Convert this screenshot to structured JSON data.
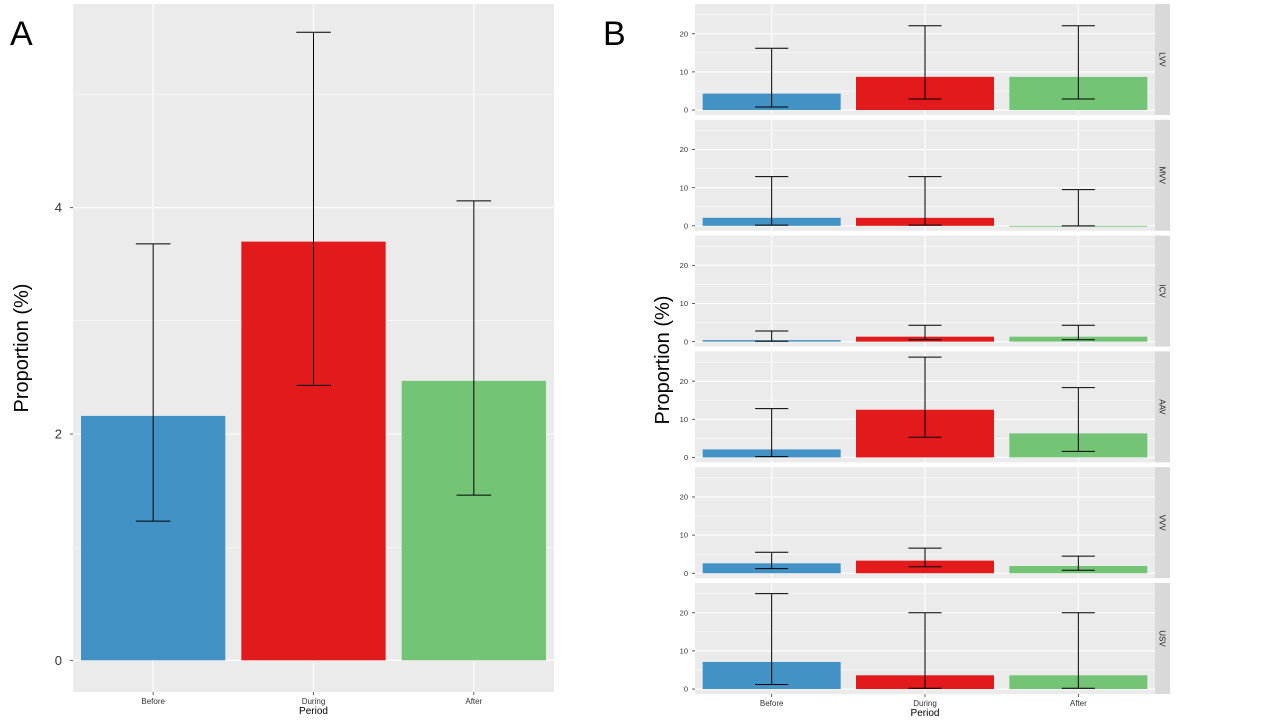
{
  "panel_letters": {
    "a": "A",
    "b": "B"
  },
  "colors": {
    "Before": "#4292C6",
    "During": "#E31A1C",
    "After": "#74C476",
    "panel_bg": "#EBEBEB",
    "grid": "#FFFFFF",
    "strip_bg": "#D9D9D9"
  },
  "chart_data": [
    {
      "type": "bar",
      "panel": "A",
      "title": "",
      "xlabel": "Period",
      "ylabel": "Proportion (%)",
      "categories": [
        "Before",
        "During",
        "After"
      ],
      "values": [
        2.16,
        3.7,
        2.47
      ],
      "error_low": [
        1.23,
        2.43,
        1.46
      ],
      "error_high": [
        3.68,
        5.55,
        4.06
      ],
      "yticks": [
        0,
        2,
        4
      ],
      "ylim": [
        -0.28,
        5.8
      ],
      "grid": true,
      "legend": "none"
    },
    {
      "type": "bar",
      "panel": "B",
      "title": "",
      "xlabel": "Period",
      "ylabel": "Proportion (%)",
      "categories": [
        "Before",
        "During",
        "After"
      ],
      "yticks": [
        0,
        10,
        20
      ],
      "ylim": [
        -1.3,
        27.8
      ],
      "grid": true,
      "legend": "none",
      "facets": [
        {
          "label": "LVV",
          "values": [
            4.3,
            8.7,
            8.7
          ],
          "error_low": [
            0.8,
            2.9,
            2.9
          ],
          "error_high": [
            16.2,
            22.1,
            22.1
          ]
        },
        {
          "label": "MVV",
          "values": [
            2.1,
            2.1,
            0.0
          ],
          "error_low": [
            0.2,
            0.2,
            0.0
          ],
          "error_high": [
            12.9,
            12.9,
            9.5
          ]
        },
        {
          "label": "ICV",
          "values": [
            0.4,
            1.3,
            1.3
          ],
          "error_low": [
            0.1,
            0.5,
            0.5
          ],
          "error_high": [
            2.8,
            4.3,
            4.3
          ]
        },
        {
          "label": "AAV",
          "values": [
            2.1,
            12.5,
            6.3
          ],
          "error_low": [
            0.2,
            5.3,
            1.6
          ],
          "error_high": [
            12.8,
            26.3,
            18.3
          ]
        },
        {
          "label": "VVV",
          "values": [
            2.6,
            3.3,
            1.9
          ],
          "error_low": [
            1.2,
            1.7,
            0.8
          ],
          "error_high": [
            5.5,
            6.6,
            4.5
          ]
        },
        {
          "label": "USV",
          "values": [
            7.1,
            3.6,
            3.6
          ],
          "error_low": [
            1.2,
            0.2,
            0.2
          ],
          "error_high": [
            25.0,
            20.0,
            20.0
          ]
        }
      ]
    }
  ]
}
